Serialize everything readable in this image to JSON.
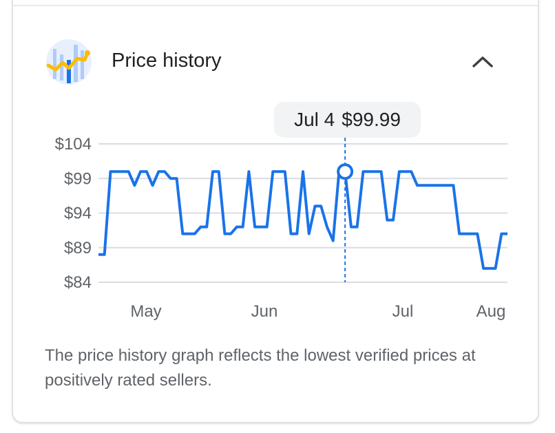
{
  "header": {
    "title": "Price history",
    "icon": "price-history-chart-icon",
    "collapse_icon": "chevron-up-icon"
  },
  "tooltip": {
    "date": "Jul 4",
    "price": "$99.99"
  },
  "chart_data": {
    "type": "line",
    "title": "",
    "ylabel": "",
    "xlabel": "",
    "ylim": [
      84,
      104
    ],
    "y_ticks": [
      "$104",
      "$99",
      "$94",
      "$89",
      "$84"
    ],
    "y_tick_values": [
      104,
      99,
      94,
      89,
      84
    ],
    "x_tick_labels": [
      "May",
      "Jun",
      "Jul",
      "Aug"
    ],
    "grid": true,
    "series_color": "#1a73e8",
    "highlight_index": 41,
    "series": [
      {
        "values": [
          88,
          88,
          100,
          100,
          100,
          100,
          98,
          100,
          100,
          98,
          100,
          100,
          99,
          99,
          91,
          91,
          91,
          92,
          92,
          100,
          100,
          91,
          91,
          92,
          92,
          100,
          92,
          92,
          92,
          100,
          100,
          100,
          91,
          91,
          100,
          91,
          95,
          95,
          92,
          90,
          100,
          100,
          92,
          92,
          100,
          100,
          100,
          100,
          93,
          93,
          100,
          100,
          100,
          98,
          98,
          98,
          98,
          98,
          98,
          98,
          91,
          91,
          91,
          91,
          86,
          86,
          86,
          91,
          91
        ]
      }
    ]
  },
  "footnote": "The price history graph reflects the lowest verified prices at positively rated sellers."
}
